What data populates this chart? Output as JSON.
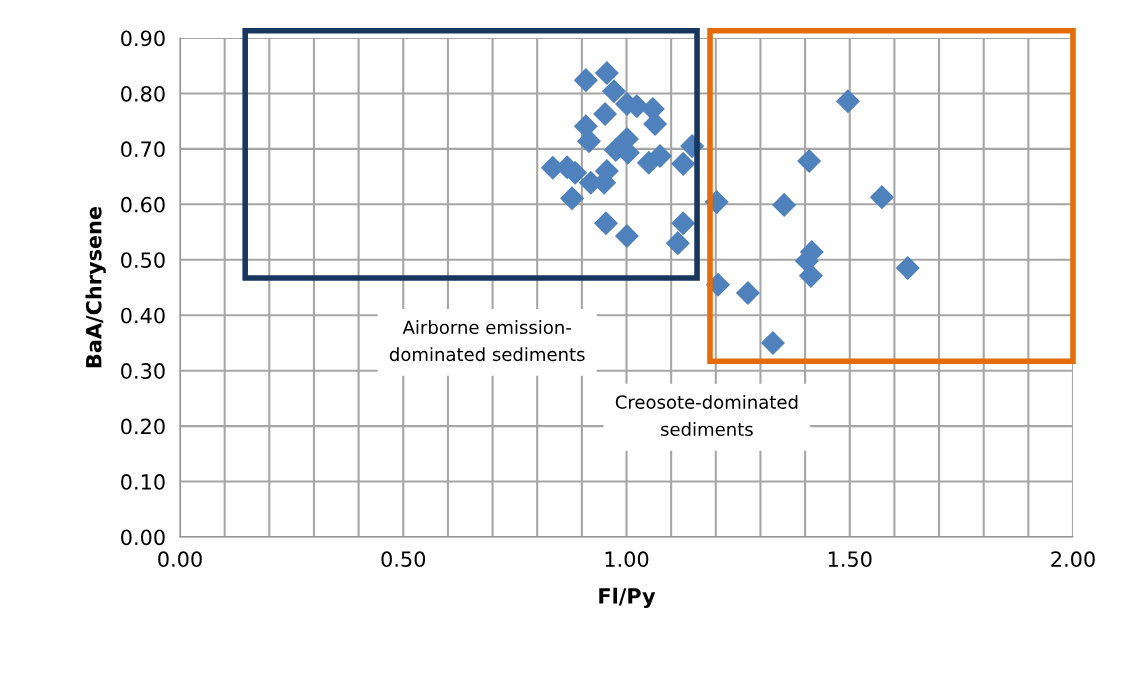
{
  "chart_data": {
    "type": "scatter",
    "xlabel": "Fl/Py",
    "ylabel": "BaA/Chrysene",
    "x": [
      0.909,
      0.956,
      0.972,
      1.001,
      1.023,
      1.059,
      1.064,
      0.952,
      0.909,
      0.916,
      1.001,
      0.976,
      1.003,
      1.05,
      1.075,
      1.127,
      1.147,
      0.835,
      0.867,
      0.885,
      0.92,
      0.956,
      0.95,
      0.878,
      0.954,
      1.001,
      1.127,
      1.115,
      1.496,
      1.409,
      1.572,
      1.202,
      1.353,
      1.415,
      1.404,
      1.413,
      1.205,
      1.272,
      1.328,
      1.63
    ],
    "values": [
      0.824,
      0.837,
      0.804,
      0.781,
      0.777,
      0.772,
      0.745,
      0.763,
      0.741,
      0.714,
      0.718,
      0.698,
      0.693,
      0.675,
      0.687,
      0.673,
      0.705,
      0.666,
      0.667,
      0.657,
      0.639,
      0.66,
      0.639,
      0.611,
      0.566,
      0.543,
      0.566,
      0.53,
      0.786,
      0.678,
      0.613,
      0.604,
      0.599,
      0.514,
      0.498,
      0.471,
      0.455,
      0.44,
      0.35,
      0.485
    ],
    "color": "#4f81bd",
    "marker": "diamond",
    "xlim": [
      0,
      2
    ],
    "ylim": [
      0,
      0.9
    ],
    "xticks": [
      {
        "value": 0,
        "label": "0.00"
      },
      {
        "value": 0.1,
        "label": null
      },
      {
        "value": 0.2,
        "label": null
      },
      {
        "value": 0.3,
        "label": null
      },
      {
        "value": 0.4,
        "label": null
      },
      {
        "value": 0.5,
        "label": "0.50"
      },
      {
        "value": 0.6,
        "label": null
      },
      {
        "value": 0.7,
        "label": null
      },
      {
        "value": 0.8,
        "label": null
      },
      {
        "value": 0.9,
        "label": null
      },
      {
        "value": 1.0,
        "label": "1.00"
      },
      {
        "value": 1.1,
        "label": null
      },
      {
        "value": 1.2,
        "label": null
      },
      {
        "value": 1.3,
        "label": null
      },
      {
        "value": 1.4,
        "label": null
      },
      {
        "value": 1.5,
        "label": "1.50"
      },
      {
        "value": 1.6,
        "label": null
      },
      {
        "value": 1.7,
        "label": null
      },
      {
        "value": 1.8,
        "label": null
      },
      {
        "value": 1.9,
        "label": null
      },
      {
        "value": 2.0,
        "label": "2.00"
      }
    ],
    "yticks": [
      {
        "value": 0,
        "label": "0.00"
      },
      {
        "value": 0.1,
        "label": "0.10"
      },
      {
        "value": 0.2,
        "label": "0.20"
      },
      {
        "value": 0.3,
        "label": "0.30"
      },
      {
        "value": 0.4,
        "label": "0.40"
      },
      {
        "value": 0.5,
        "label": "0.50"
      },
      {
        "value": 0.6,
        "label": "0.60"
      },
      {
        "value": 0.7,
        "label": "0.70"
      },
      {
        "value": 0.8,
        "label": "0.80"
      },
      {
        "value": 0.9,
        "label": "0.90"
      }
    ],
    "grid": true,
    "annotations": [
      "Airborne emission-\ndominated sediments",
      "Creosote-dominated\nsediments"
    ]
  }
}
